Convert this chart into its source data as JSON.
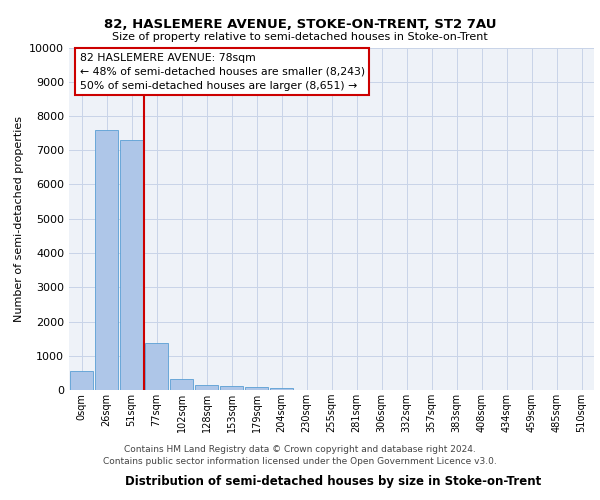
{
  "title": "82, HASLEMERE AVENUE, STOKE-ON-TRENT, ST2 7AU",
  "subtitle": "Size of property relative to semi-detached houses in Stoke-on-Trent",
  "xlabel": "Distribution of semi-detached houses by size in Stoke-on-Trent",
  "ylabel": "Number of semi-detached properties",
  "bin_labels": [
    "0sqm",
    "26sqm",
    "51sqm",
    "77sqm",
    "102sqm",
    "128sqm",
    "153sqm",
    "179sqm",
    "204sqm",
    "230sqm",
    "255sqm",
    "281sqm",
    "306sqm",
    "332sqm",
    "357sqm",
    "383sqm",
    "408sqm",
    "434sqm",
    "459sqm",
    "485sqm",
    "510sqm"
  ],
  "bar_values": [
    550,
    7600,
    7300,
    1370,
    310,
    160,
    120,
    90,
    60,
    0,
    0,
    0,
    0,
    0,
    0,
    0,
    0,
    0,
    0,
    0,
    0
  ],
  "bar_color": "#aec6e8",
  "bar_edge_color": "#5a9fd4",
  "red_line_x": 2.5,
  "annotation_text": "82 HASLEMERE AVENUE: 78sqm\n← 48% of semi-detached houses are smaller (8,243)\n50% of semi-detached houses are larger (8,651) →",
  "annotation_box_color": "#ffffff",
  "annotation_box_edge": "#cc0000",
  "red_line_color": "#cc0000",
  "ylim": [
    0,
    10000
  ],
  "yticks": [
    0,
    1000,
    2000,
    3000,
    4000,
    5000,
    6000,
    7000,
    8000,
    9000,
    10000
  ],
  "footer_line1": "Contains HM Land Registry data © Crown copyright and database right 2024.",
  "footer_line2": "Contains public sector information licensed under the Open Government Licence v3.0.",
  "bg_color": "#eef2f8",
  "grid_color": "#c8d4e8"
}
